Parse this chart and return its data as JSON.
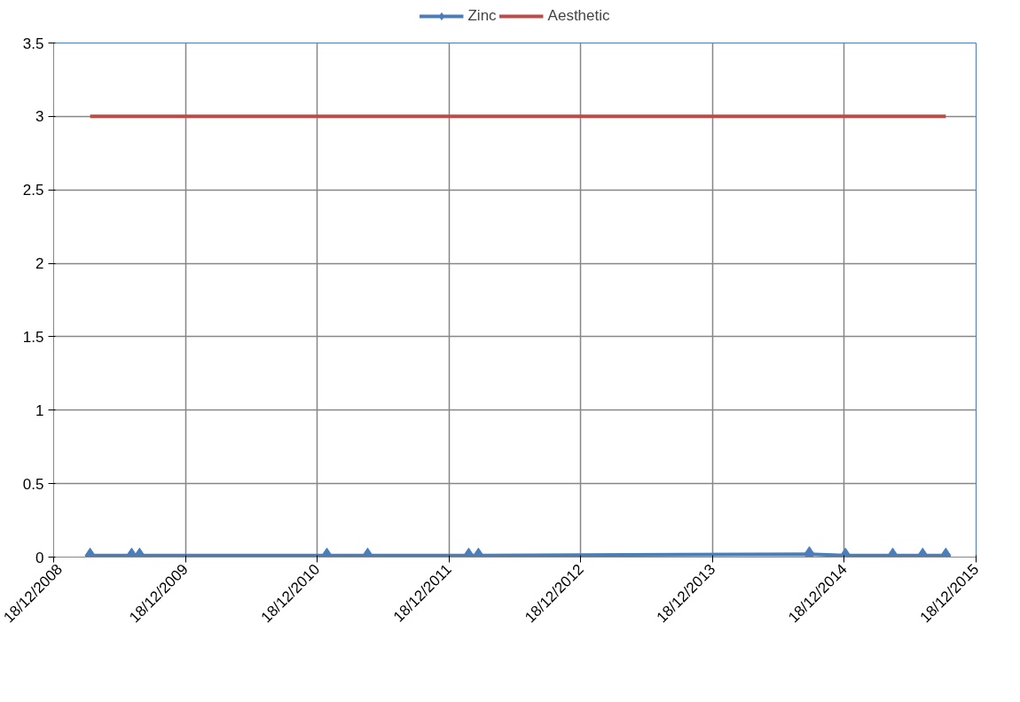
{
  "chart_data": {
    "type": "line",
    "xlim": [
      "2008-12-18",
      "2015-12-18"
    ],
    "xticks": [
      {
        "value": "2008-12-18",
        "label": "18/12/2008"
      },
      {
        "value": "2009-12-18",
        "label": "18/12/2009"
      },
      {
        "value": "2010-12-18",
        "label": "18/12/2010"
      },
      {
        "value": "2011-12-18",
        "label": "18/12/2011"
      },
      {
        "value": "2012-12-18",
        "label": "18/12/2012"
      },
      {
        "value": "2013-12-18",
        "label": "18/12/2013"
      },
      {
        "value": "2014-12-18",
        "label": "18/12/2014"
      },
      {
        "value": "2015-12-18",
        "label": "18/12/2015"
      }
    ],
    "ylim": [
      0,
      3.5
    ],
    "yticks": [
      0,
      0.5,
      1,
      1.5,
      2,
      2.5,
      3,
      3.5
    ],
    "grid": true,
    "legend": "top",
    "series": [
      {
        "name": "Zinc",
        "color": "#4a7ebb",
        "marker": "diamond",
        "x": [
          "2009-03-29",
          "2009-07-22",
          "2009-08-13",
          "2011-01-14",
          "2011-05-07",
          "2012-02-11",
          "2012-03-09",
          "2014-09-12",
          "2014-12-21",
          "2015-05-01",
          "2015-07-23",
          "2015-09-25"
        ],
        "values": [
          0.01,
          0.01,
          0.01,
          0.01,
          0.01,
          0.01,
          0.01,
          0.02,
          0.01,
          0.01,
          0.01,
          0.01
        ]
      },
      {
        "name": "Aesthetic",
        "color": "#be4b48",
        "marker": "none",
        "x": [
          "2009-03-29",
          "2015-09-25"
        ],
        "values": [
          3,
          3
        ]
      }
    ]
  }
}
